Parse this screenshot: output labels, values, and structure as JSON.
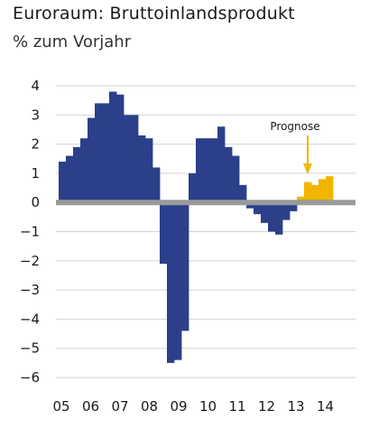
{
  "chart_data": {
    "type": "bar",
    "title": "Euroraum: Bruttoinlandsprodukt",
    "subtitle": "% zum Vorjahr",
    "ylim": [
      -6,
      4
    ],
    "y_ticks": [
      4,
      3,
      2,
      1,
      0,
      -1,
      -2,
      -3,
      -4,
      -5,
      -6
    ],
    "y_tick_labels": [
      "4",
      "3",
      "2",
      "1",
      "0",
      "−1",
      "−2",
      "−3",
      "−4",
      "−5",
      "−6"
    ],
    "x_tick_labels": [
      "05",
      "06",
      "07",
      "08",
      "09",
      "10",
      "11",
      "12",
      "13",
      "14"
    ],
    "grid": "horizontal",
    "annotation": "Prognose",
    "series": [
      {
        "values": [
          1.4,
          1.6,
          1.9,
          2.2,
          2.9,
          3.4,
          3.4,
          3.8,
          3.7,
          3.0,
          3.0,
          2.3,
          2.2,
          1.2,
          -2.1,
          -5.5,
          -5.4,
          -4.4,
          1.0,
          2.2,
          2.2,
          2.2,
          2.6,
          1.9,
          1.6,
          0.6,
          -0.2,
          -0.4,
          -0.7,
          -1.0,
          -1.1,
          -0.6,
          -0.3
        ]
      },
      {
        "values": [
          0.2,
          0.7,
          0.6,
          0.8,
          0.9
        ]
      }
    ],
    "colors": {
      "actual": "#2b3f8a",
      "forecast": "#f1b500",
      "zero_line": "#9a9a9a",
      "grid": "#d2d2d2"
    }
  }
}
